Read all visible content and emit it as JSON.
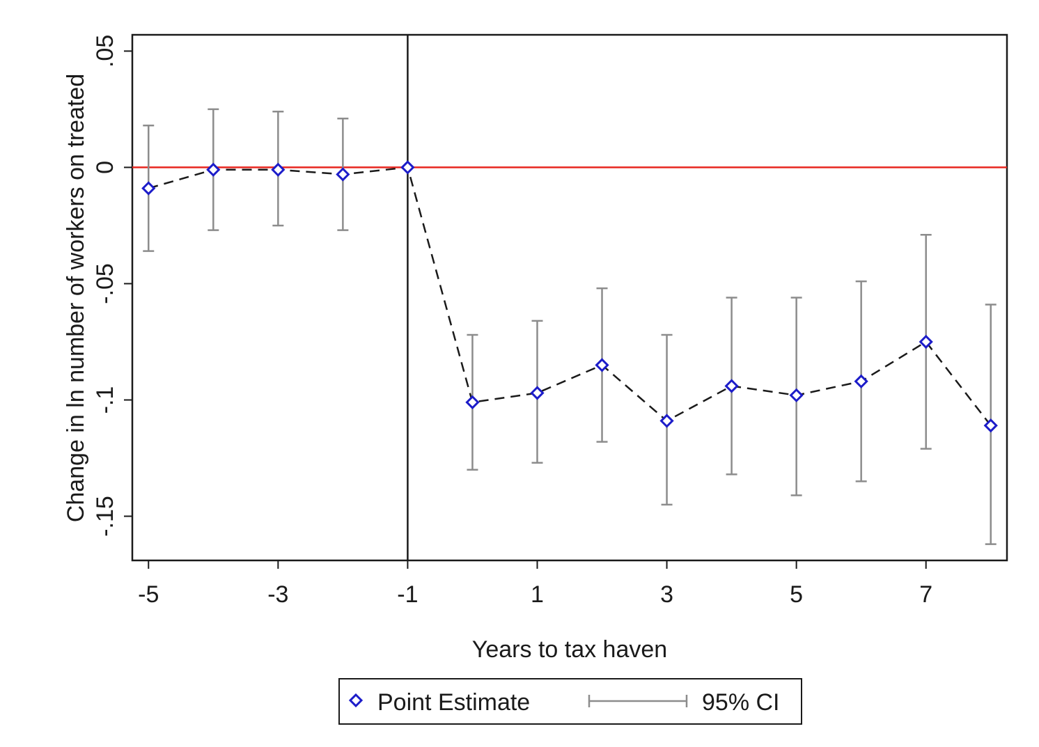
{
  "chart_data": {
    "type": "scatter",
    "xlabel": "Years to tax haven",
    "ylabel": "Change in ln number of workers on treated",
    "x_ticks": [
      -5,
      -3,
      -1,
      1,
      3,
      5,
      7
    ],
    "x_tick_labels": [
      "-5",
      "-3",
      "-1",
      "1",
      "3",
      "5",
      "7"
    ],
    "y_ticks": [
      0.05,
      0,
      -0.05,
      -0.1,
      -0.15
    ],
    "y_tick_labels": [
      ".05",
      "0",
      "-.05",
      "-.1",
      "-.15"
    ],
    "xlim": [
      -5.25,
      8.25
    ],
    "ylim": [
      -0.169,
      0.057
    ],
    "grid": false,
    "reference_lines": {
      "horizontal_y": 0,
      "horizontal_color": "#e8261f",
      "vertical_x": -1,
      "vertical_color": "#1a1a1a"
    },
    "series": [
      {
        "name": "Point Estimate",
        "kind": "point-estimate",
        "marker": "diamond",
        "marker_color": "#1c1cc9",
        "line_style": "dashed",
        "line_color": "#1a1a1a",
        "x": [
          -5,
          -4,
          -3,
          -2,
          -1,
          0,
          1,
          2,
          3,
          4,
          5,
          6,
          7,
          8
        ],
        "y": [
          -0.009,
          -0.001,
          -0.001,
          -0.003,
          0,
          -0.101,
          -0.097,
          -0.085,
          -0.109,
          -0.094,
          -0.098,
          -0.092,
          -0.075,
          -0.111
        ]
      },
      {
        "name": "95% CI",
        "kind": "confidence-interval",
        "color": "#8c8c8c",
        "x": [
          -5,
          -4,
          -3,
          -2,
          0,
          1,
          2,
          3,
          4,
          5,
          6,
          7,
          8
        ],
        "lower": [
          -0.036,
          -0.027,
          -0.025,
          -0.027,
          -0.13,
          -0.127,
          -0.118,
          -0.145,
          -0.132,
          -0.141,
          -0.135,
          -0.121,
          -0.162
        ],
        "upper": [
          0.018,
          0.025,
          0.024,
          0.021,
          -0.072,
          -0.066,
          -0.052,
          -0.072,
          -0.056,
          -0.056,
          -0.049,
          -0.029,
          -0.059
        ]
      }
    ],
    "legend": {
      "placement": "bottom-center",
      "entries": [
        {
          "label": "Point Estimate",
          "symbol": "diamond"
        },
        {
          "label": "95% CI",
          "symbol": "range"
        }
      ]
    }
  }
}
